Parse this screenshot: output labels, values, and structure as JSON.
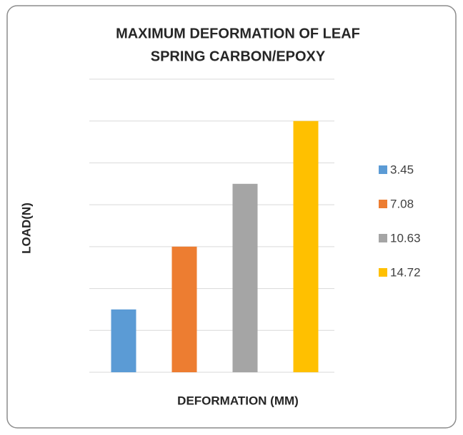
{
  "chart_data": {
    "type": "bar",
    "title": [
      "MAXIMUM DEFORMATION OF LEAF",
      "SPRING CARBON/EPOXY"
    ],
    "x_label": "DEFORMATION (MM)",
    "y_label": "LOAD(N)",
    "categories": [
      null
    ],
    "series": [
      {
        "name": "3.45",
        "color": "#5b9bd5",
        "values": [
          1.5
        ]
      },
      {
        "name": "7.08",
        "color": "#ed7d31",
        "values": [
          3
        ]
      },
      {
        "name": "10.63",
        "color": "#a5a5a5",
        "values": [
          4.5
        ]
      },
      {
        "name": "14.72",
        "color": "#ffc000",
        "values": [
          6
        ]
      }
    ],
    "ylim": [
      0,
      7
    ],
    "yticks": [
      0,
      1,
      2,
      3,
      4,
      5,
      6,
      7
    ],
    "grid": true,
    "legend": "right"
  }
}
